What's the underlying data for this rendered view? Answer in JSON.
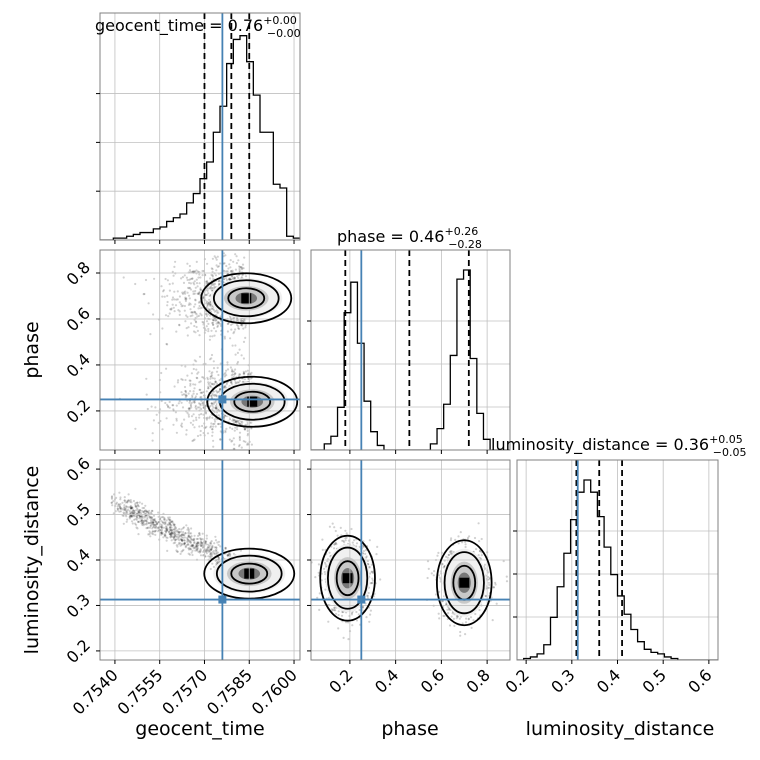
{
  "figure": {
    "titles": [
      {
        "param": "geocent_time",
        "median": "0.76",
        "plus": "+0.00",
        "minus": "−0.00"
      },
      {
        "param": "phase",
        "median": "0.46",
        "plus": "+0.26",
        "minus": "−0.28"
      },
      {
        "param": "luminosity_distance",
        "median": "0.36",
        "plus": "+0.05",
        "minus": "−0.05"
      }
    ],
    "xlabels": [
      "geocent_time",
      "phase",
      "luminosity_distance"
    ],
    "ylabels": [
      "",
      "phase",
      "luminosity_distance"
    ]
  },
  "colors": {
    "truth": "#4682b4",
    "contour": "#000000",
    "hist": "#000000",
    "grid": "#c0c0c0"
  },
  "chart_data": {
    "type": "corner",
    "parameters": [
      "geocent_time",
      "phase",
      "luminosity_distance"
    ],
    "ranges": {
      "geocent_time": [
        0.7535,
        0.7602
      ],
      "phase": [
        0.03,
        0.9
      ],
      "luminosity_distance": [
        0.18,
        0.62
      ]
    },
    "ticks": {
      "geocent_time": [
        "0.7540",
        "0.7555",
        "0.7570",
        "0.7585",
        "0.7600"
      ],
      "phase": [
        "0.2",
        "0.4",
        "0.6",
        "0.8"
      ],
      "luminosity_distance": [
        "0.2",
        "0.3",
        "0.4",
        "0.5",
        "0.6"
      ]
    },
    "truths": {
      "geocent_time": 0.7576,
      "phase": 0.25,
      "luminosity_distance": 0.313
    },
    "quantiles": {
      "geocent_time": [
        0.757,
        0.7579,
        0.7585
      ],
      "phase": [
        0.18,
        0.46,
        0.72
      ],
      "luminosity_distance": [
        0.31,
        0.36,
        0.41
      ]
    },
    "histograms": {
      "geocent_time": {
        "bins": [
          0.7535,
          0.7602
        ],
        "counts": [
          0,
          0,
          1,
          1,
          2,
          3,
          4,
          4,
          6,
          7,
          10,
          12,
          14,
          20,
          25,
          33,
          42,
          58,
          72,
          95,
          108,
          110,
          96,
          78,
          58,
          58,
          30,
          28,
          2,
          1
        ]
      },
      "phase": {
        "bins": [
          0.03,
          0.9
        ],
        "counts": [
          0,
          0,
          4,
          9,
          28,
          90,
          110,
          70,
          32,
          12,
          3,
          0,
          0,
          0,
          0,
          0,
          0,
          0,
          4,
          14,
          30,
          62,
          112,
          118,
          60,
          24,
          7,
          0,
          0,
          0
        ]
      },
      "luminosity_distance": {
        "bins": [
          0.18,
          0.62
        ],
        "counts": [
          0,
          1,
          2,
          4,
          10,
          28,
          48,
          70,
          92,
          110,
          118,
          110,
          94,
          74,
          56,
          42,
          30,
          20,
          12,
          7,
          5,
          4,
          2,
          1,
          0,
          0,
          0,
          0,
          0,
          0
        ]
      }
    },
    "modes": [
      {
        "x": "geocent_time",
        "y": "phase",
        "centers": [
          [
            0.7584,
            0.69
          ],
          [
            0.7586,
            0.24
          ]
        ]
      },
      {
        "x": "geocent_time",
        "y": "luminosity_distance",
        "centers": [
          [
            0.7585,
            0.37
          ]
        ]
      },
      {
        "x": "phase",
        "y": "luminosity_distance",
        "centers": [
          [
            0.19,
            0.36
          ],
          [
            0.7,
            0.35
          ]
        ]
      }
    ]
  }
}
